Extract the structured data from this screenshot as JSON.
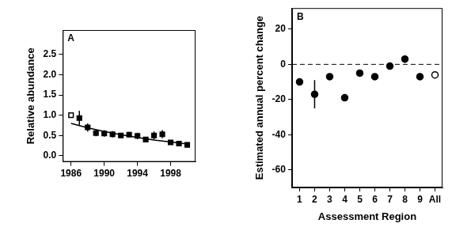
{
  "chart_data": [
    {
      "type": "scatter",
      "title": "A",
      "y_label": "Relative abundance",
      "xlim": [
        1985,
        2001
      ],
      "xticks": [
        1986,
        1990,
        1994,
        1998
      ],
      "ylim": [
        -0.15,
        3.1
      ],
      "yticks": [
        {
          "value": 0,
          "label": "0.0"
        },
        {
          "value": 0.5,
          "label": "0.5"
        },
        {
          "value": 1,
          "label": "1.0"
        },
        {
          "value": 1.5,
          "label": "1.5"
        },
        {
          "value": 2,
          "label": "2.0"
        },
        {
          "value": 2.5,
          "label": "2.5"
        }
      ],
      "grid": false,
      "series": [
        {
          "x": [
            1986
          ],
          "values": [
            1.0
          ],
          "marker": "square-open",
          "color": "#000000"
        },
        {
          "x": [
            1987,
            1988,
            1989,
            1990,
            1991,
            1992,
            1993,
            1994,
            1995,
            1996,
            1997,
            1998,
            1999,
            2000
          ],
          "values": [
            0.93,
            0.7,
            0.56,
            0.55,
            0.53,
            0.5,
            0.52,
            0.49,
            0.4,
            0.5,
            0.53,
            0.33,
            0.3,
            0.27
          ],
          "errors": [
            0.18,
            0.1,
            0.08,
            0.08,
            0.08,
            0.06,
            0.07,
            0.08,
            0.06,
            0.1,
            0.1,
            0.05,
            0.04,
            0.04
          ],
          "marker": "square",
          "color": "#000000"
        },
        {
          "type": "line",
          "x": [
            1986,
            1988,
            1990,
            1992,
            1994,
            1996,
            1998,
            2000
          ],
          "values": [
            0.8,
            0.69,
            0.6,
            0.52,
            0.45,
            0.39,
            0.34,
            0.29
          ],
          "color": "#000000",
          "line_style": "solid"
        }
      ]
    },
    {
      "type": "scatter",
      "title": "B",
      "x_label": "Assessment Region",
      "y_label": "Estimated annual percent change",
      "categories": [
        "1",
        "2",
        "3",
        "4",
        "5",
        "6",
        "7",
        "8",
        "9",
        "All"
      ],
      "ylim": [
        -70,
        32
      ],
      "yticks": [
        -60,
        -40,
        -20,
        0,
        20
      ],
      "grid": false,
      "hlines": [
        {
          "value": 0,
          "line_style": "dashed",
          "color": "#000000"
        }
      ],
      "series": [
        {
          "values": [
            -10,
            -17,
            -7,
            -19,
            -5,
            -7,
            -1,
            3,
            -7,
            null
          ],
          "errors": [
            1,
            8,
            1.5,
            1.5,
            1,
            1,
            1.5,
            2,
            2,
            null
          ],
          "marker": "circle",
          "color": "#000000"
        },
        {
          "values": [
            null,
            null,
            null,
            null,
            null,
            null,
            null,
            null,
            null,
            -6
          ],
          "marker": "circle-open",
          "color": "#000000"
        }
      ]
    }
  ]
}
